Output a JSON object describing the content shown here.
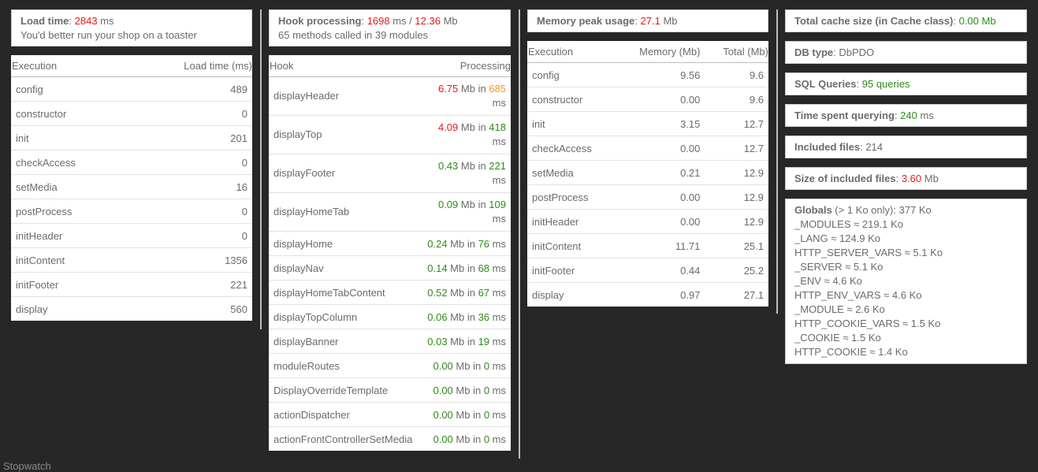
{
  "load": {
    "label": "Load time",
    "value": "2843",
    "unit": " ms",
    "note": "You'd better run your shop on a toaster"
  },
  "load_table": {
    "col1": "Execution",
    "col2": "Load time (ms)",
    "rows": [
      {
        "name": "config",
        "value": "489",
        "color": "green"
      },
      {
        "name": "constructor",
        "value": "0",
        "color": "green"
      },
      {
        "name": "init",
        "value": "201",
        "color": "green"
      },
      {
        "name": "checkAccess",
        "value": "0",
        "color": "green"
      },
      {
        "name": "setMedia",
        "value": "16",
        "color": "green"
      },
      {
        "name": "postProcess",
        "value": "0",
        "color": "green"
      },
      {
        "name": "initHeader",
        "value": "0",
        "color": "green"
      },
      {
        "name": "initContent",
        "value": "1356",
        "color": "red"
      },
      {
        "name": "initFooter",
        "value": "221",
        "color": "green"
      },
      {
        "name": "display",
        "value": "560",
        "color": "orange"
      }
    ]
  },
  "hook": {
    "label": "Hook processing",
    "ms": "1698",
    "ms_unit": " ms / ",
    "mb": "12.36",
    "mb_unit": " Mb",
    "note": "65 methods called in 39 modules"
  },
  "hook_table": {
    "col1": "Hook",
    "col2": "Processing",
    "rows": [
      {
        "name": "displayHeader",
        "mb": "6.75",
        "mb_color": "red",
        "ms": "685",
        "ms_color": "orange",
        "tall": true
      },
      {
        "name": "displayTop",
        "mb": "4.09",
        "mb_color": "red",
        "ms": "418",
        "ms_color": "green",
        "tall": true
      },
      {
        "name": "displayFooter",
        "mb": "0.43",
        "mb_color": "green",
        "ms": "221",
        "ms_color": "green",
        "tall": true
      },
      {
        "name": "displayHomeTab",
        "mb": "0.09",
        "mb_color": "green",
        "ms": "109",
        "ms_color": "green",
        "tall": true
      },
      {
        "name": "displayHome",
        "mb": "0.24",
        "mb_color": "green",
        "ms": "76",
        "ms_color": "green",
        "tall": false
      },
      {
        "name": "displayNav",
        "mb": "0.14",
        "mb_color": "green",
        "ms": "68",
        "ms_color": "green",
        "tall": false
      },
      {
        "name": "displayHomeTabContent",
        "mb": "0.52",
        "mb_color": "green",
        "ms": "67",
        "ms_color": "green",
        "tall": false
      },
      {
        "name": "displayTopColumn",
        "mb": "0.06",
        "mb_color": "green",
        "ms": "36",
        "ms_color": "green",
        "tall": false
      },
      {
        "name": "displayBanner",
        "mb": "0.03",
        "mb_color": "green",
        "ms": "19",
        "ms_color": "green",
        "tall": false
      },
      {
        "name": "moduleRoutes",
        "mb": "0.00",
        "mb_color": "green",
        "ms": "0",
        "ms_color": "green",
        "tall": false
      },
      {
        "name": "DisplayOverrideTemplate",
        "mb": "0.00",
        "mb_color": "green",
        "ms": "0",
        "ms_color": "green",
        "tall": false
      },
      {
        "name": "actionDispatcher",
        "mb": "0.00",
        "mb_color": "green",
        "ms": "0",
        "ms_color": "green",
        "tall": false
      },
      {
        "name": "actionFrontControllerSetMedia",
        "mb": "0.00",
        "mb_color": "green",
        "ms": "0",
        "ms_color": "green",
        "tall": false
      }
    ],
    "mb_word": " Mb in ",
    "ms_word": " ms"
  },
  "memory": {
    "label": "Memory peak usage",
    "value": "27.1",
    "unit": " Mb"
  },
  "memory_table": {
    "col1": "Execution",
    "col2": "Memory (Mb)",
    "col3": "Total (Mb)",
    "rows": [
      {
        "name": "config",
        "mem": "9.56",
        "mem_color": "red",
        "total": "9.6",
        "total_color": "green"
      },
      {
        "name": "constructor",
        "mem": "0.00",
        "mem_color": "green",
        "total": "9.6",
        "total_color": "green"
      },
      {
        "name": "init",
        "mem": "3.15",
        "mem_color": "red",
        "total": "12.7",
        "total_color": "orange"
      },
      {
        "name": "checkAccess",
        "mem": "0.00",
        "mem_color": "green",
        "total": "12.7",
        "total_color": "orange"
      },
      {
        "name": "setMedia",
        "mem": "0.21",
        "mem_color": "green",
        "total": "12.9",
        "total_color": "orange"
      },
      {
        "name": "postProcess",
        "mem": "0.00",
        "mem_color": "green",
        "total": "12.9",
        "total_color": "orange"
      },
      {
        "name": "initHeader",
        "mem": "0.00",
        "mem_color": "green",
        "total": "12.9",
        "total_color": "orange"
      },
      {
        "name": "initContent",
        "mem": "11.71",
        "mem_color": "red",
        "total": "25.1",
        "total_color": "red"
      },
      {
        "name": "initFooter",
        "mem": "0.44",
        "mem_color": "green",
        "total": "25.2",
        "total_color": "red"
      },
      {
        "name": "display",
        "mem": "0.97",
        "mem_color": "green",
        "total": "27.1",
        "total_color": "red"
      }
    ]
  },
  "stats": {
    "cache": {
      "label": "Total cache size (in Cache class)",
      "value": "0.00 Mb"
    },
    "db": {
      "label": "DB type",
      "value": "DbPDO"
    },
    "sql": {
      "label": "SQL Queries",
      "value": "95 queries"
    },
    "time": {
      "label": "Time spent querying",
      "value": "240",
      "unit": " ms"
    },
    "files": {
      "label": "Included files",
      "value": "214"
    },
    "size": {
      "label": "Size of included files",
      "value": "3.60",
      "unit": " Mb"
    }
  },
  "globals": {
    "label": "Globals",
    "note": " (> 1 Ko only): 377 Ko",
    "items": [
      "_MODULES ≈ 219.1 Ko",
      "_LANG ≈ 124.9 Ko",
      "HTTP_SERVER_VARS ≈ 5.1 Ko",
      "_SERVER ≈ 5.1 Ko",
      "_ENV ≈ 4.6 Ko",
      "HTTP_ENV_VARS ≈ 4.6 Ko",
      "_MODULE ≈ 2.6 Ko",
      "HTTP_COOKIE_VARS ≈ 1.5 Ko",
      "_COOKIE ≈ 1.5 Ko",
      "HTTP_COOKIE ≈ 1.4 Ko"
    ]
  },
  "footer": {
    "stopwatch": "Stopwatch"
  }
}
